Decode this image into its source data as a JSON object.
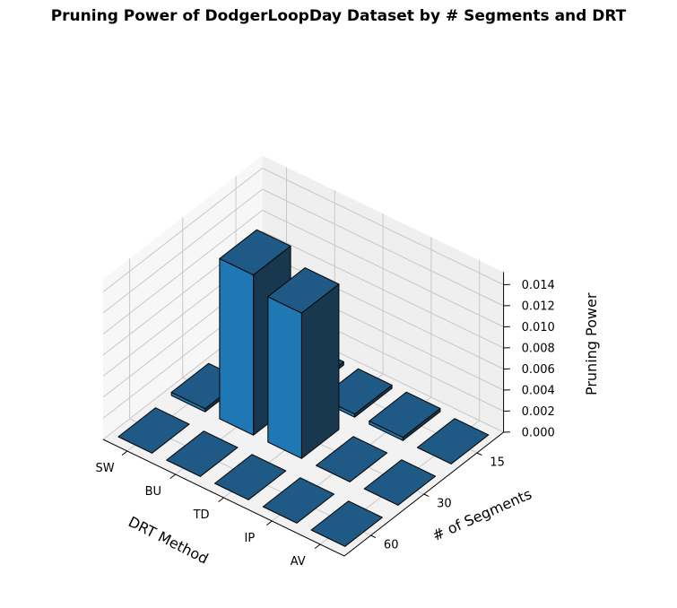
{
  "chart_data": {
    "type": "bar3d",
    "title": "Pruning Power of DodgerLoopDay Dataset by # Segments and DRT",
    "xlabel": "DRT Method",
    "ylabel": "# of Segments",
    "zlabel": "Pruning Power",
    "x_categories": [
      "AV",
      "IP",
      "TD",
      "BU",
      "SW"
    ],
    "y_categories": [
      "60",
      "30",
      "15"
    ],
    "z_ticks": [
      "0.000",
      "0.002",
      "0.004",
      "0.006",
      "0.008",
      "0.010",
      "0.012",
      "0.014"
    ],
    "zlim": [
      0,
      0.0152
    ],
    "grid": true,
    "bar_color": "#1f77b4",
    "values": [
      [
        0,
        0,
        0
      ],
      [
        0,
        0,
        0.0003
      ],
      [
        0,
        0.0138,
        0.0003
      ],
      [
        0,
        0.0152,
        0.0003
      ],
      [
        0,
        0.0003,
        0.001
      ]
    ]
  }
}
